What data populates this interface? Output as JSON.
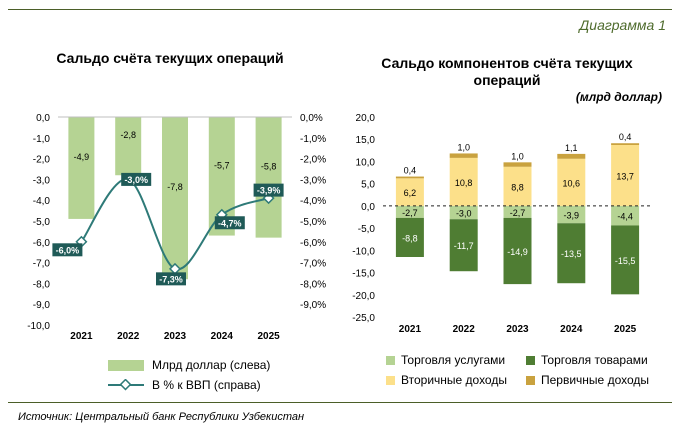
{
  "figure_label": "Диаграмма 1",
  "source": "Источник: Центральный банк Республики Узбекистан",
  "colors": {
    "accent_line": "#4b5e28",
    "left_bar": "#b5d393",
    "line": "#2e7a78",
    "services": "#b5d393",
    "goods": "#4f7d33",
    "secondary": "#fce08a",
    "primary": "#c9a23f",
    "label_box": "#1f5a57"
  },
  "chart_data": [
    {
      "type": "bar+line",
      "title": "Сальдо счёта текущих операций",
      "categories": [
        "2021",
        "2022",
        "2023",
        "2024",
        "2025"
      ],
      "left_axis": {
        "ylim": [
          -10.0,
          0.0
        ],
        "ticks": [
          "0,0",
          "-1,0",
          "-2,0",
          "-3,0",
          "-4,0",
          "-5,0",
          "-6,0",
          "-7,0",
          "-8,0",
          "-9,0",
          "-10,0"
        ]
      },
      "right_axis": {
        "ylim": [
          -9.0,
          0.0
        ],
        "ticks": [
          "0,0%",
          "-1,0%",
          "-2,0%",
          "-3,0%",
          "-4,0%",
          "-5,0%",
          "-6,0%",
          "-7,0%",
          "-8,0%",
          "-9,0%"
        ]
      },
      "series": [
        {
          "name": "Млрд доллар (слева)",
          "kind": "bar",
          "values": [
            -4.9,
            -2.8,
            -7.8,
            -5.7,
            -5.8
          ],
          "labels": [
            "-4,9",
            "-2,8",
            "-7,8",
            "-5,7",
            "-5,8"
          ]
        },
        {
          "name": "В % к ВВП (справа)",
          "kind": "line",
          "values": [
            -6.0,
            -3.0,
            -7.3,
            -4.7,
            -3.9
          ],
          "labels": [
            "-6,0%",
            "-3,0%",
            "-7,3%",
            "-4,7%",
            "-3,9%"
          ]
        }
      ],
      "legend": "bottom"
    },
    {
      "type": "stacked-bar",
      "title": "Сальдо компонентов счёта текущих операций",
      "unit": "(млрд доллар)",
      "categories": [
        "2021",
        "2022",
        "2023",
        "2024",
        "2025"
      ],
      "ylim": [
        -25.0,
        20.0
      ],
      "ticks": [
        "20,0",
        "15,0",
        "10,0",
        "5,0",
        "0,0",
        "-5,0",
        "-10,0",
        "-15,0",
        "-20,0",
        "-25,0"
      ],
      "series": [
        {
          "name": "Торговля услугами",
          "key": "services",
          "values": [
            -2.7,
            -3.0,
            -2.7,
            -3.9,
            -4.4
          ],
          "labels": [
            "-2,7",
            "-3,0",
            "-2,7",
            "-3,9",
            "-4,4"
          ]
        },
        {
          "name": "Торговля товарами",
          "key": "goods",
          "values": [
            -8.8,
            -11.7,
            -14.9,
            -13.5,
            -15.5
          ],
          "labels": [
            "-8,8",
            "-11,7",
            "-14,9",
            "-13,5",
            "-15,5"
          ]
        },
        {
          "name": "Вторичные доходы",
          "key": "secondary",
          "values": [
            6.2,
            10.8,
            8.8,
            10.6,
            13.7
          ],
          "labels": [
            "6,2",
            "10,8",
            "8,8",
            "10,6",
            "13,7"
          ]
        },
        {
          "name": "Первичные доходы",
          "key": "primary",
          "values": [
            0.4,
            1.0,
            1.0,
            1.1,
            0.4
          ],
          "labels": [
            "0,4",
            "1,0",
            "1,0",
            "1,1",
            "0,4"
          ]
        }
      ],
      "legend": "bottom"
    }
  ]
}
